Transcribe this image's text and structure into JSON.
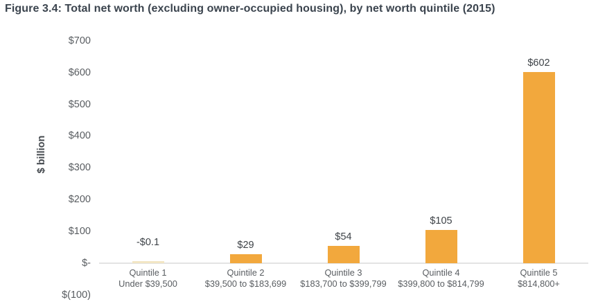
{
  "figure": {
    "title": "Figure 3.4: Total net worth (excluding owner-occupied housing), by net worth quintile (2015)"
  },
  "chart_data": {
    "type": "bar",
    "title": "Figure 3.4: Total net worth (excluding owner-occupied housing), by net worth quintile (2015)",
    "xlabel": "",
    "ylabel": "$ billion",
    "categories": [
      {
        "line1": "Quintile 1",
        "line2": "Under $39,500"
      },
      {
        "line1": "Quintile 2",
        "line2": "$39,500 to $183,699"
      },
      {
        "line1": "Quintile 3",
        "line2": "$183,700 to $399,799"
      },
      {
        "line1": "Quintile 4",
        "line2": "$399,800 to $814,799"
      },
      {
        "line1": "Quintile 5",
        "line2": "$814,800+"
      }
    ],
    "values": [
      -0.1,
      29,
      54,
      105,
      602
    ],
    "value_labels": [
      "-$0.1",
      "$29",
      "$54",
      "$105",
      "$602"
    ],
    "yticks": [
      {
        "label": "$700",
        "value": 700
      },
      {
        "label": "$600",
        "value": 600
      },
      {
        "label": "$500",
        "value": 500
      },
      {
        "label": "$400",
        "value": 400
      },
      {
        "label": "$300",
        "value": 300
      },
      {
        "label": "$200",
        "value": 200
      },
      {
        "label": "$100",
        "value": 100
      },
      {
        "label": "$-",
        "value": 0
      },
      {
        "label": "$(100)",
        "value": -100
      }
    ],
    "ylim": [
      -100,
      700
    ],
    "grid": false,
    "legend": "none",
    "colors": {
      "bar": "#F2A83D",
      "tiny_negative_bar": "#F2E6C4",
      "axis_line": "#E3E3E3",
      "title_text": "#3B444E",
      "tick_text": "#595D61",
      "value_text": "#3D4247"
    }
  }
}
